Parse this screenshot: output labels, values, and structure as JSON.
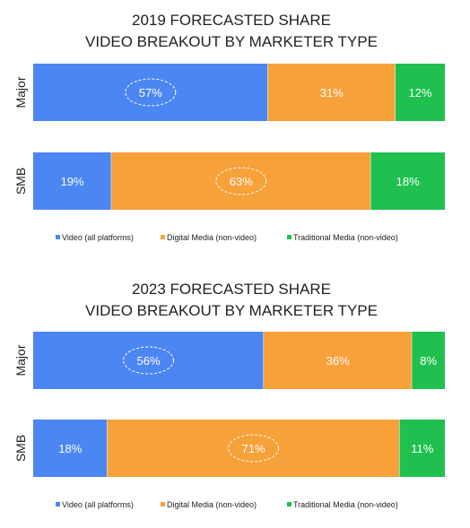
{
  "colors": {
    "video": "#4c86f2",
    "digital": "#f7a13a",
    "traditional": "#1fc04f"
  },
  "chart_data": [
    {
      "type": "bar",
      "orientation": "horizontal",
      "stacked": "percent",
      "title": "2019 FORECASTED SHARE",
      "subtitle": "VIDEO BREAKOUT BY MARKETER TYPE",
      "categories": [
        "Major",
        "SMB"
      ],
      "series": [
        {
          "name": "Video (all platforms)",
          "values": [
            57,
            19
          ]
        },
        {
          "name": "Digital Media (non-video)",
          "values": [
            31,
            63
          ]
        },
        {
          "name": "Traditional Media (non-video)",
          "values": [
            12,
            18
          ]
        }
      ],
      "labels": [
        [
          "57%",
          "31%",
          "12%"
        ],
        [
          "19%",
          "63%",
          "18%"
        ]
      ],
      "highlighted": [
        0,
        1
      ],
      "legend_position": "bottom",
      "grid": false
    },
    {
      "type": "bar",
      "orientation": "horizontal",
      "stacked": "percent",
      "title": "2023 FORECASTED SHARE",
      "subtitle": "VIDEO BREAKOUT BY MARKETER TYPE",
      "categories": [
        "Major",
        "SMB"
      ],
      "series": [
        {
          "name": "Video (all platforms)",
          "values": [
            56,
            18
          ]
        },
        {
          "name": "Digital Media (non-video)",
          "values": [
            36,
            71
          ]
        },
        {
          "name": "Traditional Media (non-video)",
          "values": [
            8,
            11
          ]
        }
      ],
      "labels": [
        [
          "56%",
          "36%",
          "8%"
        ],
        [
          "18%",
          "71%",
          "11%"
        ]
      ],
      "highlighted": [
        0,
        1
      ],
      "legend_position": "bottom",
      "grid": false
    }
  ]
}
